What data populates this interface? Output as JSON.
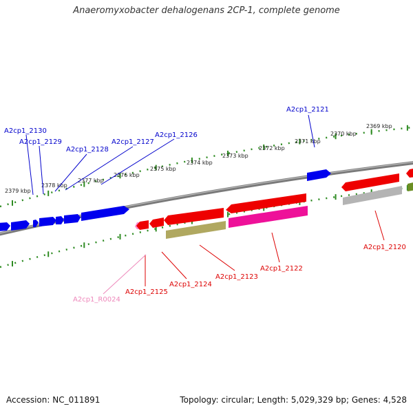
{
  "title": "Anaeromyxobacter dehalogenans 2CP-1, complete genome",
  "footer": {
    "accession": "Accession: NC_011891",
    "summary": "Topology: circular; Length: 5,029,329 bp; Genes: 4,528"
  },
  "colors": {
    "backbone": "#808080",
    "tick": "#2e8b22",
    "forward_gene": "#0000ee",
    "reverse_gene": "#ee0000",
    "pseudo_rna": "#ff44cc",
    "olive_feature": "#b0a860",
    "gray_feature": "#b4b4b4",
    "dark_olive": "#6b8e23",
    "label_forward": "#0000cc",
    "label_reverse": "#dd0000",
    "label_rna": "#ee88bb"
  },
  "scale_labels": [
    "2369 kbp",
    "2370 kbp",
    "2371 kbp",
    "2372 kbp",
    "2373 kbp",
    "2374 kbp",
    "2375 kbp",
    "2376 kbp",
    "2377 kbp",
    "2378 kbp",
    "2379 kbp"
  ],
  "forward_genes": [
    "A2cp1_2130",
    "A2cp1_2129",
    "A2cp1_2128",
    "A2cp1_2127",
    "A2cp1_2126",
    "A2cp1_2121"
  ],
  "reverse_genes": [
    "A2cp1_2125",
    "A2cp1_2124",
    "A2cp1_2123",
    "A2cp1_2122",
    "A2cp1_2120"
  ],
  "rna_genes": [
    "A2cp1_R0024"
  ]
}
